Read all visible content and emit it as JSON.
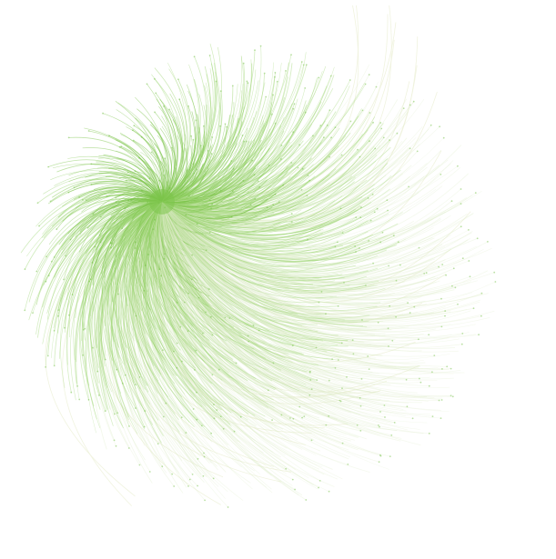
{
  "graph": {
    "type": "radial-network",
    "description_visible_text": [],
    "colors": {
      "background": "#ffffff",
      "edge_core": "#7cc44a",
      "edge_mid": "#9ad46e",
      "edge_faint": "#dcebc6",
      "edge_outer": "#eef2dc",
      "node": "#6bbd3a"
    },
    "hub": {
      "label": ""
    },
    "edge_count": 1400,
    "outlier_edge_count": 32
  }
}
